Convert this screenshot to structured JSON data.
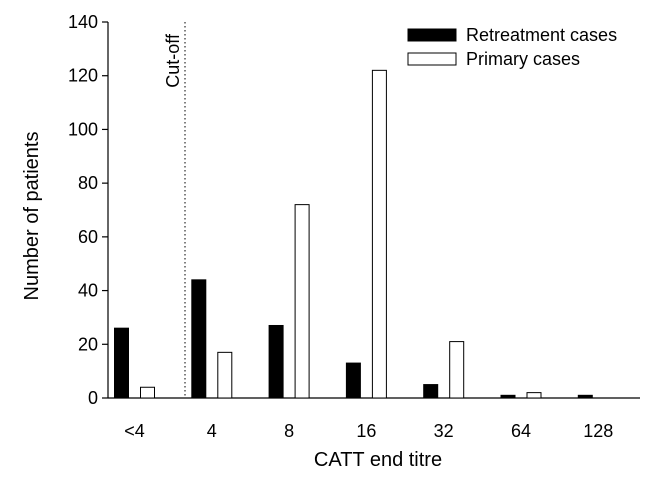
{
  "chart_data": {
    "type": "bar",
    "xlabel": "CATT end titre",
    "ylabel": "Number of patients",
    "ylim": [
      0,
      140
    ],
    "yticks": [
      0,
      20,
      40,
      60,
      80,
      100,
      120,
      140
    ],
    "categories": [
      "<4",
      "4",
      "8",
      "16",
      "32",
      "64",
      "128"
    ],
    "series": [
      {
        "name": "Retreatment cases",
        "values": [
          26,
          44,
          27,
          13,
          5,
          1,
          1
        ],
        "fill": "#000000",
        "stroke": "#000000"
      },
      {
        "name": "Primary cases",
        "values": [
          4,
          17,
          72,
          122,
          21,
          2,
          0
        ],
        "fill": "#ffffff",
        "stroke": "#000000"
      }
    ],
    "annotations": [
      {
        "text": "Cut-off",
        "position_between_categories": [
          "<4",
          "4"
        ]
      }
    ],
    "legend": {
      "placement": "top-right"
    },
    "grid": false
  }
}
